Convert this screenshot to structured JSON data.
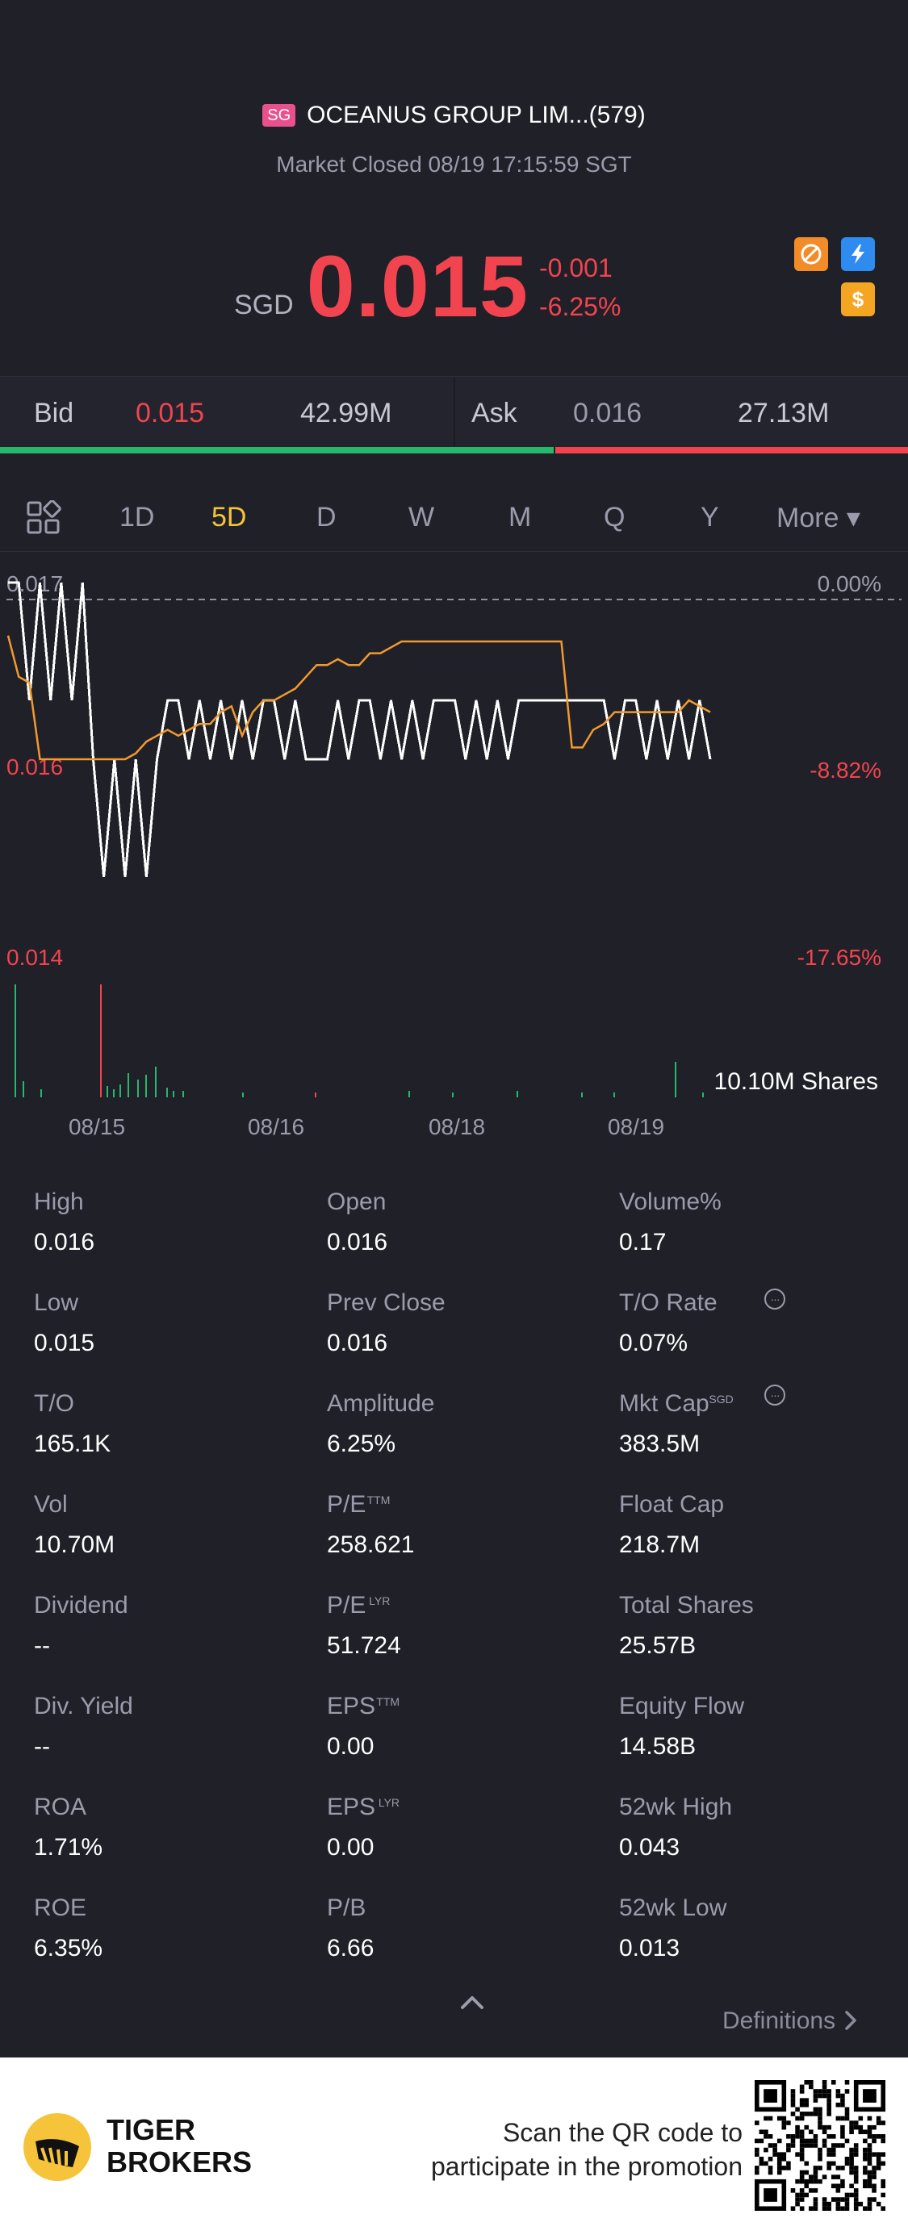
{
  "header": {
    "exchange_badge": "SG",
    "title": "OCEANUS GROUP LIM...(579)",
    "market_status": "Market Closed 08/19 17:15:59 SGT",
    "currency": "SGD",
    "price": "0.015",
    "change": "-0.001",
    "change_pct": "-6.25%",
    "icons": [
      "no-delay-icon",
      "level1-icon",
      "dollar-icon"
    ],
    "colors": {
      "down": "#f2444f",
      "accent": "#f6c43a"
    }
  },
  "bidask": {
    "bid_label": "Bid",
    "bid_price": "0.015",
    "bid_volume": "42.99M",
    "ask_label": "Ask",
    "ask_price": "0.016",
    "ask_volume": "27.13M",
    "bid_ratio": 0.61
  },
  "tabs": [
    {
      "label": "1D"
    },
    {
      "label": "5D",
      "active": true
    },
    {
      "label": "D"
    },
    {
      "label": "W"
    },
    {
      "label": "M"
    },
    {
      "label": "Q"
    },
    {
      "label": "Y"
    },
    {
      "label": "More ▾"
    }
  ],
  "chart_data": {
    "type": "line",
    "y_ticks": [
      "0.017",
      "0.016",
      "0.014"
    ],
    "y_pct_ticks": [
      "0.00%",
      "-8.82%",
      "-17.65%"
    ],
    "ylim": [
      0.014,
      0.017
    ],
    "x_ticks": [
      "08/15",
      "08/16",
      "08/18",
      "08/19"
    ],
    "volume_label": "10.10M Shares",
    "series": [
      {
        "color": "#ffffff",
        "values": [
          0.017,
          0.017,
          0.016,
          0.017,
          0.016,
          0.017,
          0.016,
          0.017,
          0.0155,
          0.0145,
          0.0155,
          0.0145,
          0.0155,
          0.0145,
          0.0155,
          0.016,
          0.016,
          0.0155,
          0.016,
          0.0155,
          0.016,
          0.0155,
          0.016,
          0.0155,
          0.016,
          0.016,
          0.0155,
          0.016,
          0.0155,
          0.0155,
          0.0155,
          0.016,
          0.0155,
          0.016,
          0.016,
          0.0155,
          0.016,
          0.0155,
          0.016,
          0.0155,
          0.016,
          0.016,
          0.016,
          0.0155,
          0.016,
          0.0155,
          0.016,
          0.0155,
          0.016,
          0.016,
          0.016,
          0.016,
          0.016,
          0.016,
          0.016,
          0.016,
          0.016,
          0.0155,
          0.016,
          0.016,
          0.0155,
          0.016,
          0.0155,
          0.016,
          0.0155,
          0.016,
          0.0155
        ]
      },
      {
        "color": "#f29a2e",
        "values": [
          0.01655,
          0.0162,
          0.01615,
          0.0155,
          0.0155,
          0.0155,
          0.0155,
          0.0155,
          0.0155,
          0.0155,
          0.0155,
          0.0155,
          0.01555,
          0.01565,
          0.0157,
          0.01575,
          0.0157,
          0.01575,
          0.0158,
          0.0158,
          0.0159,
          0.01595,
          0.0157,
          0.0159,
          0.016,
          0.016,
          0.01605,
          0.0161,
          0.0162,
          0.0163,
          0.0163,
          0.01635,
          0.0163,
          0.0163,
          0.0164,
          0.0164,
          0.01645,
          0.0165,
          0.0165,
          0.0165,
          0.0165,
          0.0165,
          0.0165,
          0.0165,
          0.0165,
          0.0165,
          0.0165,
          0.0165,
          0.0165,
          0.0165,
          0.0165,
          0.0165,
          0.0165,
          0.0156,
          0.0156,
          0.01575,
          0.0158,
          0.0159,
          0.0159,
          0.0159,
          0.0159,
          0.0159,
          0.0159,
          0.0159,
          0.016,
          0.01595,
          0.0159
        ]
      }
    ],
    "volume_colors": {
      "up": "#27b86e",
      "down": "#f2444f"
    }
  },
  "stats": [
    [
      {
        "label": "High",
        "value": "0.016"
      },
      {
        "label": "Low",
        "value": "0.015"
      },
      {
        "label": "T/O",
        "value": "165.1K"
      },
      {
        "label": "Vol",
        "value": "10.70M"
      },
      {
        "label": "Dividend",
        "value": "--"
      },
      {
        "label": "Div. Yield",
        "value": "--"
      },
      {
        "label": "ROA",
        "value": "1.71%"
      },
      {
        "label": "ROE",
        "value": "6.35%"
      }
    ],
    [
      {
        "label": "Open",
        "value": "0.016"
      },
      {
        "label": "Prev Close",
        "value": "0.016"
      },
      {
        "label": "Amplitude",
        "value": "6.25%"
      },
      {
        "label": "P/E",
        "sup": "TTM",
        "value": "258.621"
      },
      {
        "label": "P/E",
        "sup": "LYR",
        "value": "51.724"
      },
      {
        "label": "EPS",
        "sup": "TTM",
        "value": "0.00"
      },
      {
        "label": "EPS",
        "sup": "LYR",
        "value": "0.00"
      },
      {
        "label": "P/B",
        "value": "6.66"
      }
    ],
    [
      {
        "label": "Volume%",
        "value": "0.17"
      },
      {
        "label": "T/O Rate",
        "value": "0.07%",
        "more": true
      },
      {
        "label": "Mkt Cap",
        "sup": "SGD",
        "value": "383.5M",
        "more": true
      },
      {
        "label": "Float Cap",
        "value": "218.7M"
      },
      {
        "label": "Total Shares",
        "value": "25.57B"
      },
      {
        "label": "Equity Flow",
        "value": "14.58B"
      },
      {
        "label": "52wk High",
        "value": "0.043"
      },
      {
        "label": "52wk Low",
        "value": "0.013"
      }
    ]
  ],
  "definitions_label": "Definitions",
  "footer": {
    "brand_line1": "TIGER",
    "brand_line2": "BROKERS",
    "promo_line1": "Scan the QR code to",
    "promo_line2": "participate in the promotion"
  }
}
